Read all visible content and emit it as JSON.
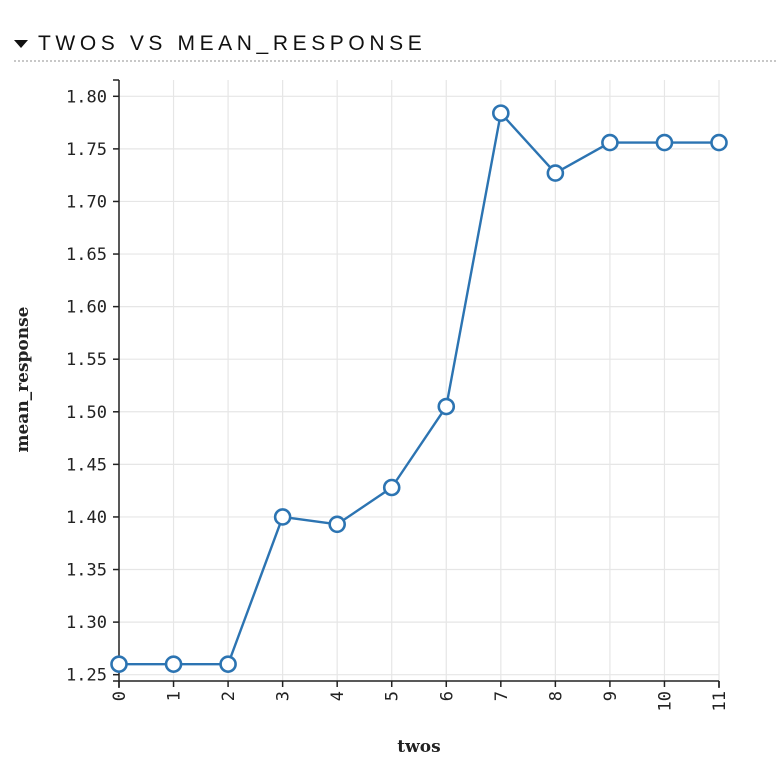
{
  "header": {
    "title": "TWOS VS MEAN_RESPONSE"
  },
  "chart_data": {
    "type": "line",
    "xlabel": "twos",
    "ylabel": "mean_response",
    "categories": [
      0,
      1,
      2,
      3,
      4,
      5,
      6,
      7,
      8,
      9,
      10,
      11
    ],
    "values": [
      1.26,
      1.26,
      1.26,
      1.4,
      1.393,
      1.428,
      1.505,
      1.784,
      1.727,
      1.756,
      1.756,
      1.756
    ],
    "x_tick_labels": [
      "0",
      "1",
      "2",
      "3",
      "4",
      "5",
      "6",
      "7",
      "8",
      "9",
      "10",
      "11"
    ],
    "y_ticks": [
      1.25,
      1.3,
      1.35,
      1.4,
      1.45,
      1.5,
      1.55,
      1.6,
      1.65,
      1.7,
      1.75,
      1.8
    ],
    "y_tick_labels": [
      "1.25",
      "1.30",
      "1.35",
      "1.40",
      "1.45",
      "1.50",
      "1.55",
      "1.60",
      "1.65",
      "1.70",
      "1.75",
      "1.80"
    ],
    "ylim": [
      1.25,
      1.8
    ],
    "grid": true,
    "markers": "open-circle",
    "colors": {
      "line": "#2c74b2",
      "grid": "#e6e6e6",
      "axis": "#222222"
    }
  }
}
